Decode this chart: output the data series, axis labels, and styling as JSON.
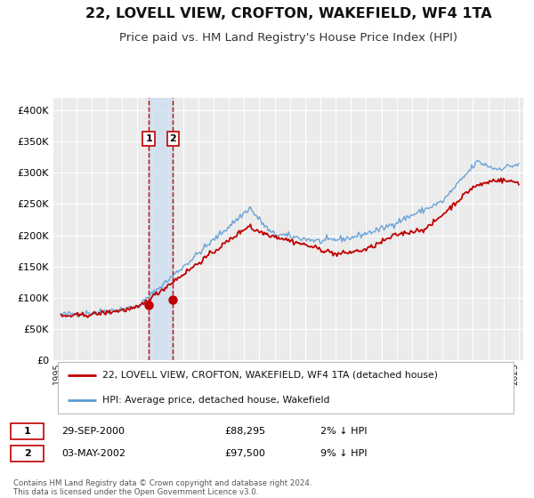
{
  "title": "22, LOVELL VIEW, CROFTON, WAKEFIELD, WF4 1TA",
  "subtitle": "Price paid vs. HM Land Registry's House Price Index (HPI)",
  "title_fontsize": 11.5,
  "subtitle_fontsize": 9.5,
  "background_color": "#ffffff",
  "plot_bg_color": "#ebebeb",
  "legend_label_red": "22, LOVELL VIEW, CROFTON, WAKEFIELD, WF4 1TA (detached house)",
  "legend_label_blue": "HPI: Average price, detached house, Wakefield",
  "transaction1_date": "29-SEP-2000",
  "transaction1_price": 88295,
  "transaction1_pct": "2% ↓ HPI",
  "transaction2_date": "03-MAY-2002",
  "transaction2_price": 97500,
  "transaction2_pct": "9% ↓ HPI",
  "footer_text": "Contains HM Land Registry data © Crown copyright and database right 2024.\nThis data is licensed under the Open Government Licence v3.0.",
  "ylim": [
    0,
    420000
  ],
  "yticks": [
    0,
    50000,
    100000,
    150000,
    200000,
    250000,
    300000,
    350000,
    400000
  ],
  "ytick_labels": [
    "£0",
    "£50K",
    "£100K",
    "£150K",
    "£200K",
    "£250K",
    "£300K",
    "£350K",
    "£400K"
  ],
  "hpi_color": "#5b9bd5",
  "price_color": "#c00000",
  "marker_color": "#c00000",
  "vline_color": "#c00000",
  "shade_color": "#ccddf0",
  "transaction1_x": 2000.75,
  "transaction1_y": 88295,
  "transaction2_x": 2002.33,
  "transaction2_y": 97500,
  "xlim_start": 1994.5,
  "xlim_end": 2025.3
}
